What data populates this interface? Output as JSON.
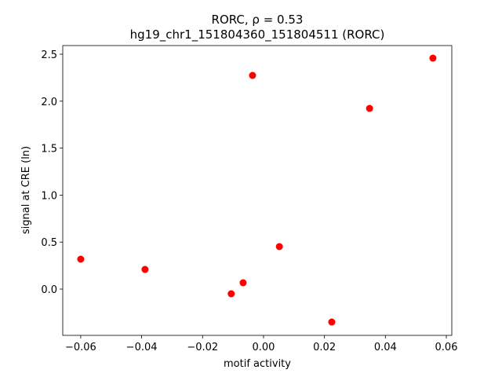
{
  "chart_data": {
    "type": "scatter",
    "title": "RORC, ρ = 0.53",
    "subtitle": "hg19_chr1_151804360_151804511 (RORC)",
    "x_label": "motif activity",
    "y_label": "signal at CRE (ln)",
    "color": "#ff0000",
    "x": [
      -0.06,
      -0.0389,
      -0.0106,
      -0.0067,
      -0.0036,
      0.0052,
      0.0224,
      0.0348,
      0.0556
    ],
    "values": [
      0.318,
      0.209,
      -0.05,
      0.067,
      2.274,
      0.452,
      -0.351,
      1.923,
      2.458
    ],
    "xlim": [
      -0.0659,
      0.0618
    ],
    "ylim": [
      -0.493,
      2.592
    ],
    "xticks": [
      {
        "value": -0.06,
        "label": "−0.06"
      },
      {
        "value": -0.04,
        "label": "−0.04"
      },
      {
        "value": -0.02,
        "label": "−0.02"
      },
      {
        "value": 0,
        "label": "0.00"
      },
      0.02,
      0.04,
      0.06
    ],
    "yticks": [
      {
        "value": 0,
        "label": "0.0"
      },
      0.5,
      {
        "value": 1,
        "label": "1.0"
      },
      1.5,
      {
        "value": 2,
        "label": "2.0"
      },
      2.5
    ]
  }
}
